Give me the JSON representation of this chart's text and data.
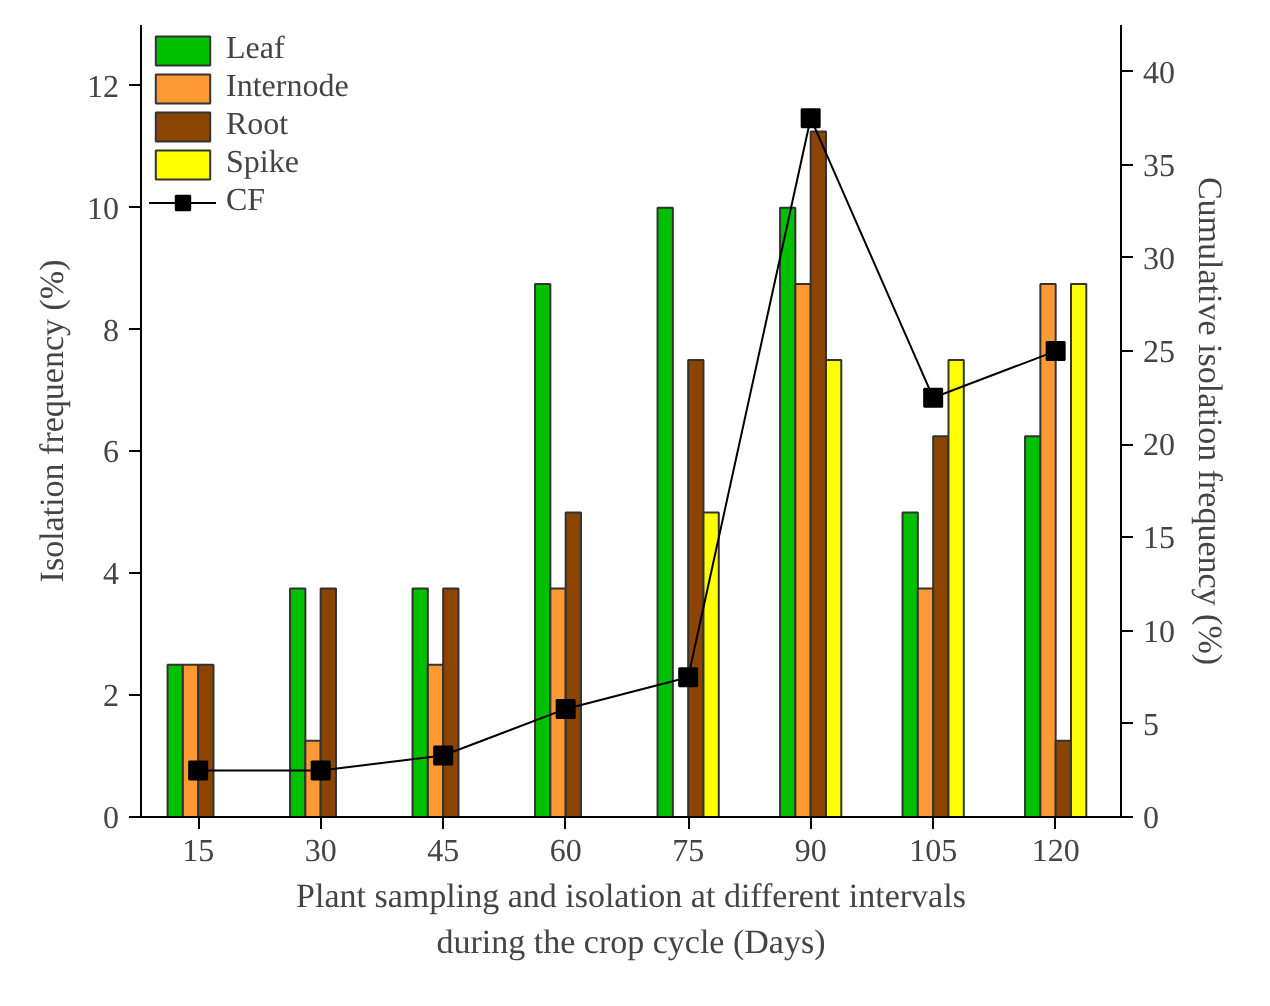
{
  "chart_data": {
    "type": "bar",
    "xlabel": "Plant sampling and isolation at different intervals\nduring the crop cycle (Days)",
    "ylabel": "Isolation frequency (%)",
    "y2label": "Cumulative isolation frequency (%)",
    "x": [
      15,
      30,
      45,
      60,
      75,
      90,
      105,
      120
    ],
    "xlim": [
      8,
      128
    ],
    "xticks": [
      15,
      30,
      45,
      60,
      75,
      90,
      105,
      120
    ],
    "ylim": [
      0,
      13
    ],
    "yticks": [
      0,
      2,
      4,
      6,
      8,
      10,
      12
    ],
    "y2lim": [
      0,
      42.5
    ],
    "y2ticks": [
      0,
      5,
      10,
      15,
      20,
      25,
      30,
      35,
      40
    ],
    "series": [
      {
        "name": "Leaf",
        "color": "#00c000",
        "values": [
          2.5,
          3.75,
          3.75,
          8.75,
          10,
          10,
          5,
          6.25
        ]
      },
      {
        "name": "Internode",
        "color": "#ff9933",
        "values": [
          2.5,
          1.25,
          2.5,
          3.75,
          null,
          8.75,
          3.75,
          8.75
        ]
      },
      {
        "name": "Root",
        "color": "#8b4500",
        "values": [
          2.5,
          3.75,
          3.75,
          5,
          7.5,
          11.25,
          6.25,
          1.25
        ]
      },
      {
        "name": "Spike",
        "color": "#ffff00",
        "values": [
          null,
          null,
          null,
          null,
          5,
          7.5,
          7.5,
          8.75
        ]
      },
      {
        "name": "CF",
        "type": "line",
        "axis": "y2",
        "color": "#000000",
        "marker": "square",
        "values": [
          2.5,
          2.5,
          3.3,
          5.8,
          7.5,
          37.5,
          22.5,
          25
        ]
      }
    ],
    "grid": false,
    "legend": "top left"
  }
}
